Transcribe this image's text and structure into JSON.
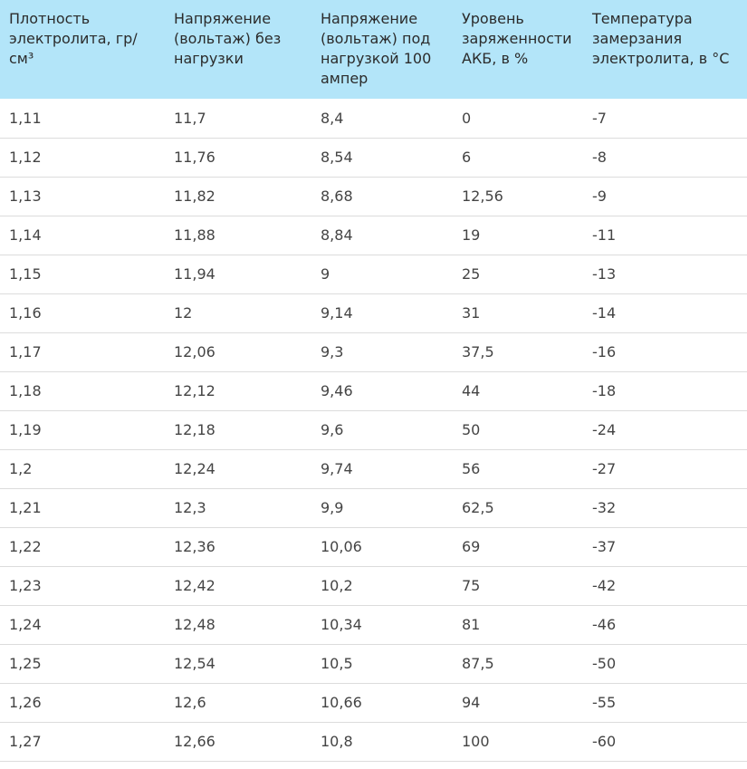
{
  "table": {
    "headers": [
      "Плотность электролита, гр/см³",
      "Напряжение (вольтаж) без нагрузки",
      "Напряжение (вольтаж) под нагрузкой 100 ампер",
      "Уровень заряженности АКБ, в %",
      "Температура замерзания электролита, в °С"
    ],
    "rows": [
      [
        "1,11",
        "11,7",
        "8,4",
        "0",
        "-7"
      ],
      [
        "1,12",
        "11,76",
        "8,54",
        "6",
        "-8"
      ],
      [
        "1,13",
        "11,82",
        "8,68",
        "12,56",
        "-9"
      ],
      [
        "1,14",
        "11,88",
        "8,84",
        "19",
        "-11"
      ],
      [
        "1,15",
        "11,94",
        "9",
        "25",
        "-13"
      ],
      [
        "1,16",
        "12",
        "9,14",
        "31",
        "-14"
      ],
      [
        "1,17",
        "12,06",
        "9,3",
        "37,5",
        "-16"
      ],
      [
        "1,18",
        "12,12",
        "9,46",
        "44",
        "-18"
      ],
      [
        "1,19",
        "12,18",
        "9,6",
        "50",
        "-24"
      ],
      [
        "1,2",
        "12,24",
        "9,74",
        "56",
        "-27"
      ],
      [
        "1,21",
        "12,3",
        "9,9",
        "62,5",
        "-32"
      ],
      [
        "1,22",
        "12,36",
        "10,06",
        "69",
        "-37"
      ],
      [
        "1,23",
        "12,42",
        "10,2",
        "75",
        "-42"
      ],
      [
        "1,24",
        "12,48",
        "10,34",
        "81",
        "-46"
      ],
      [
        "1,25",
        "12,54",
        "10,5",
        "87,5",
        "-50"
      ],
      [
        "1,26",
        "12,6",
        "10,66",
        "94",
        "-55"
      ],
      [
        "1,27",
        "12,66",
        "10,8",
        "100",
        "-60"
      ]
    ]
  },
  "colors": {
    "header_background": "#b3e5f9",
    "row_divider": "#dcdcdc",
    "text": "#444444"
  }
}
